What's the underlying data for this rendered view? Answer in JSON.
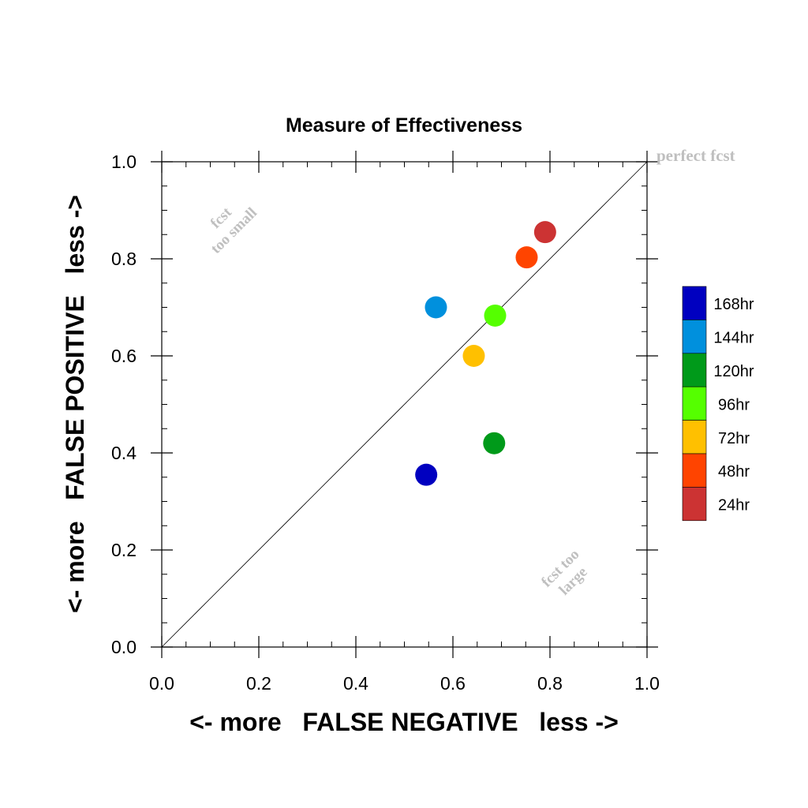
{
  "chart_data": {
    "type": "scatter",
    "title": "Measure of Effectiveness",
    "xlabel": "<- more   FALSE NEGATIVE   less ->",
    "ylabel": "<- more   FALSE POSITIVE   less ->",
    "xlim": [
      0.0,
      1.0
    ],
    "ylim": [
      0.0,
      1.0
    ],
    "xticks": [
      "0.0",
      "0.2",
      "0.4",
      "0.6",
      "0.8",
      "1.0"
    ],
    "yticks": [
      "0.0",
      "0.2",
      "0.4",
      "0.6",
      "0.8",
      "1.0"
    ],
    "grid": false,
    "reference_line": "diagonal",
    "annotations": {
      "perfect": "perfect fcst",
      "small_line1": "fcst",
      "small_line2": "too small",
      "large_line1": "fcst too",
      "large_line2": "large"
    },
    "legend_position": "right",
    "points": [
      {
        "label": "168hr",
        "x": 0.545,
        "y": 0.355,
        "color": "#0000c0"
      },
      {
        "label": "144hr",
        "x": 0.565,
        "y": 0.7,
        "color": "#0090dd"
      },
      {
        "label": "120hr",
        "x": 0.685,
        "y": 0.42,
        "color": "#009a1a"
      },
      {
        "label": "96hr",
        "x": 0.687,
        "y": 0.683,
        "color": "#55ff00"
      },
      {
        "label": "72hr",
        "x": 0.643,
        "y": 0.6,
        "color": "#ffc000"
      },
      {
        "label": "48hr",
        "x": 0.752,
        "y": 0.803,
        "color": "#ff4400"
      },
      {
        "label": "24hr",
        "x": 0.79,
        "y": 0.855,
        "color": "#cc3333"
      }
    ]
  }
}
